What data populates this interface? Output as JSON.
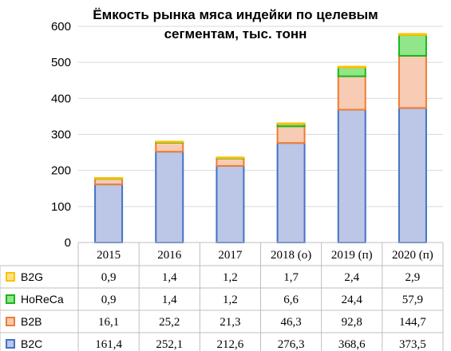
{
  "chart_data": {
    "type": "bar",
    "stacked": true,
    "title": "Ёмкость рынка мяса индейки по целевым сегментам, тыс. тонн",
    "title_lines": [
      "Ёмкость рынка мяса индейки по целевым",
      "сегментам, тыс. тонн"
    ],
    "categories": [
      "2015",
      "2016",
      "2017",
      "2018 (о)",
      "2019 (п)",
      "2020 (п)"
    ],
    "ylim": [
      0,
      600
    ],
    "yticks": [
      "0",
      "100",
      "200",
      "300",
      "400",
      "500",
      "600"
    ],
    "grid": true,
    "legend": "data-table-left",
    "series": [
      {
        "name": "B2C",
        "values": [
          161.4,
          252.1,
          212.6,
          276.3,
          368.6,
          373.5
        ],
        "labels": [
          "161,4",
          "252,1",
          "212,6",
          "276,3",
          "368,6",
          "373,5"
        ],
        "fill": "#bcc6e6",
        "stroke": "#4472c4"
      },
      {
        "name": "B2B",
        "values": [
          16.1,
          25.2,
          21.3,
          46.3,
          92.8,
          144.7
        ],
        "labels": [
          "16,1",
          "25,2",
          "21,3",
          "46,3",
          "92,8",
          "144,7"
        ],
        "fill": "#f8cbb4",
        "stroke": "#ed7d31"
      },
      {
        "name": "HoReCa",
        "values": [
          0.9,
          1.4,
          1.2,
          6.6,
          24.4,
          57.9
        ],
        "labels": [
          "0,9",
          "1,4",
          "1,2",
          "6,6",
          "24,4",
          "57,9"
        ],
        "fill": "#92e68a",
        "stroke": "#1bb51b"
      },
      {
        "name": "B2G",
        "values": [
          0.9,
          1.4,
          1.2,
          1.7,
          2.4,
          2.9
        ],
        "labels": [
          "0,9",
          "1,4",
          "1,2",
          "1,7",
          "2,4",
          "2,9"
        ],
        "fill": "#ffe28a",
        "stroke": "#ffc000"
      }
    ]
  }
}
